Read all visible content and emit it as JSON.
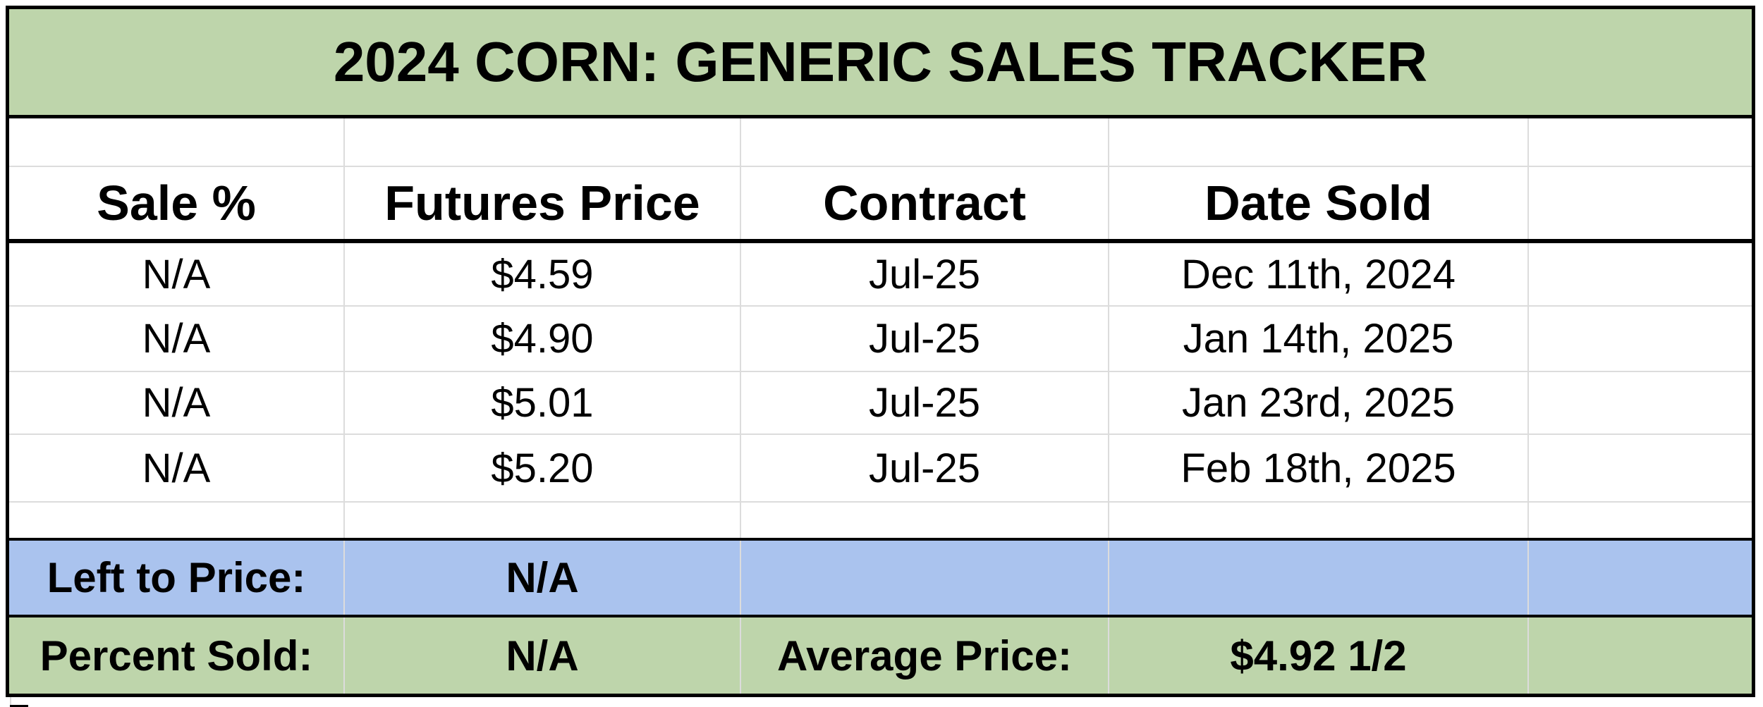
{
  "title": "2024 CORN: GENERIC SALES TRACKER",
  "header": {
    "sale_pct": "Sale %",
    "futures_price": "Futures Price",
    "contract": "Contract",
    "date_sold": "Date Sold"
  },
  "rows": [
    {
      "sale_pct": "N/A",
      "futures_price": "$4.59",
      "contract": "Jul-25",
      "date_sold": "Dec 11th, 2024"
    },
    {
      "sale_pct": "N/A",
      "futures_price": "$4.90",
      "contract": "Jul-25",
      "date_sold": "Jan 14th, 2025"
    },
    {
      "sale_pct": "N/A",
      "futures_price": "$5.01",
      "contract": "Jul-25",
      "date_sold": "Jan 23rd, 2025"
    },
    {
      "sale_pct": "N/A",
      "futures_price": "$5.20",
      "contract": "Jul-25",
      "date_sold": "Feb 18th, 2025"
    }
  ],
  "summary": {
    "left_to_price_label": "Left to Price:",
    "left_to_price_value": "N/A",
    "percent_sold_label": "Percent Sold:",
    "percent_sold_value": "N/A",
    "average_price_label": "Average Price:",
    "average_price_value": "$4.92 1/2"
  },
  "colors": {
    "title_bg": "#bed5ab",
    "summary_blue_bg": "#aac3ee",
    "summary_green_bg": "#bed5ab",
    "grid_line": "#dcdcdc",
    "border_black": "#000000"
  }
}
